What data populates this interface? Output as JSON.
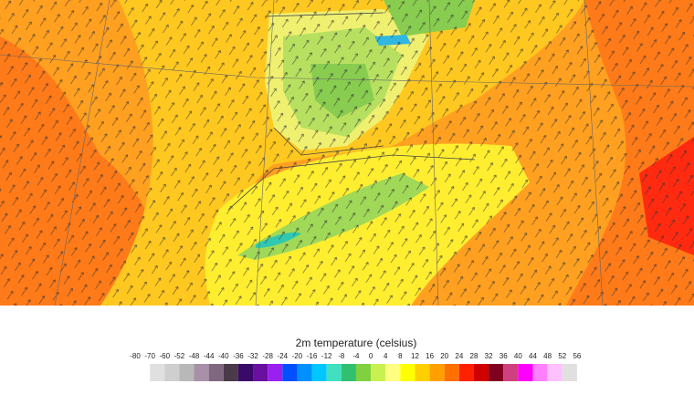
{
  "legend": {
    "title": "2m temperature (celsius)",
    "ticks": [
      -80,
      -70,
      -60,
      -52,
      -48,
      -44,
      -40,
      -36,
      -32,
      -28,
      -24,
      -20,
      -16,
      -12,
      -8,
      -4,
      0,
      4,
      8,
      12,
      16,
      20,
      24,
      28,
      32,
      36,
      40,
      44,
      48,
      52,
      56
    ],
    "colors": [
      "#e0e0e0",
      "#cfcfcf",
      "#b8b8b8",
      "#a890a8",
      "#806880",
      "#4a3a4a",
      "#3a0a6a",
      "#6a10a0",
      "#9a20f0",
      "#0050ff",
      "#0090ff",
      "#00c8ff",
      "#40e0c0",
      "#30c070",
      "#80d040",
      "#c8f050",
      "#ffff80",
      "#ffff00",
      "#ffd000",
      "#ffa000",
      "#ff7000",
      "#ff2000",
      "#d00000",
      "#800020",
      "#d04080",
      "#ff00ff",
      "#ff80ff",
      "#ffc0ff",
      "#e0e0e0"
    ]
  }
}
